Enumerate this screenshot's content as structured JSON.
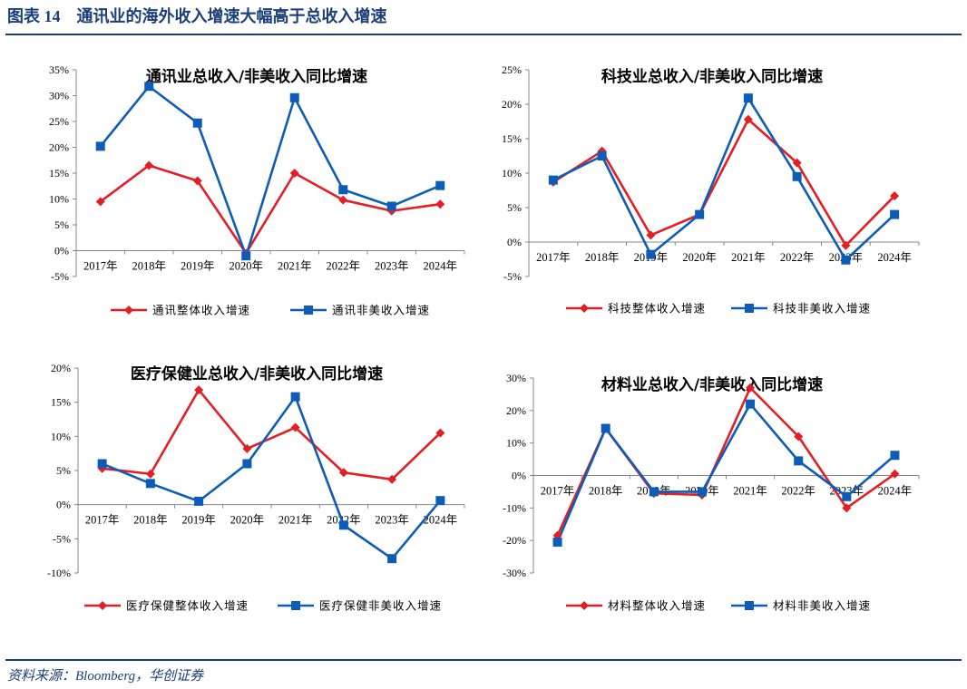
{
  "header": {
    "figure_label": "图表 14",
    "title": "通讯业的海外收入增速大幅高于总收入增速"
  },
  "footer": {
    "source": "资料来源：Bloomberg，华创证券"
  },
  "colors": {
    "brand": "#1a3f7a",
    "total_series": "#e31e24",
    "nonus_series": "#0d5db8"
  },
  "chart_data": [
    {
      "type": "line",
      "title": "通讯业总收入/非美收入同比增速",
      "categories": [
        "2017年",
        "2018年",
        "2019年",
        "2020年",
        "2021年",
        "2022年",
        "2023年",
        "2024年"
      ],
      "ylim": [
        -5,
        35
      ],
      "yticks": [
        -5,
        0,
        5,
        10,
        15,
        20,
        25,
        30,
        35
      ],
      "grid": false,
      "legend": "bottom",
      "series": [
        {
          "name": "通讯整体收入增速",
          "marker": "diamond",
          "values": [
            9.5,
            16.5,
            13.5,
            -0.5,
            15.0,
            9.8,
            7.7,
            9.0
          ]
        },
        {
          "name": "通讯非美收入增速",
          "marker": "square",
          "values": [
            20.2,
            31.8,
            24.7,
            -1.0,
            29.6,
            11.8,
            8.6,
            12.6
          ]
        }
      ]
    },
    {
      "type": "line",
      "title": "科技业总收入/非美收入同比增速",
      "categories": [
        "2017年",
        "2018年",
        "2019年",
        "2020年",
        "2021年",
        "2022年",
        "2023年",
        "2024年"
      ],
      "ylim": [
        -5,
        25
      ],
      "yticks": [
        -5,
        0,
        5,
        10,
        15,
        20,
        25
      ],
      "grid": false,
      "legend": "bottom",
      "series": [
        {
          "name": "科技整体收入增速",
          "marker": "diamond",
          "values": [
            8.7,
            13.2,
            1.0,
            4.0,
            17.8,
            11.5,
            -0.5,
            6.7
          ]
        },
        {
          "name": "科技非美收入增速",
          "marker": "square",
          "values": [
            9.0,
            12.5,
            -1.8,
            4.0,
            20.9,
            9.5,
            -2.6,
            4.0
          ]
        }
      ]
    },
    {
      "type": "line",
      "title": "医疗保健业总收入/非美收入同比增速",
      "categories": [
        "2017年",
        "2018年",
        "2019年",
        "2020年",
        "2021年",
        "2022年",
        "2023年",
        "2024年"
      ],
      "ylim": [
        -10,
        20
      ],
      "yticks": [
        -10,
        -5,
        0,
        5,
        10,
        15,
        20
      ],
      "grid": false,
      "legend": "bottom",
      "series": [
        {
          "name": "医疗保健整体收入增速",
          "marker": "diamond",
          "values": [
            5.3,
            4.5,
            16.8,
            8.2,
            11.3,
            4.7,
            3.7,
            10.5
          ]
        },
        {
          "name": "医疗保健非美收入增速",
          "marker": "square",
          "values": [
            6.0,
            3.1,
            0.5,
            6.0,
            15.8,
            -3.0,
            -7.9,
            0.6
          ]
        }
      ]
    },
    {
      "type": "line",
      "title": "材料业总收入/非美收入同比增速",
      "categories": [
        "2017年",
        "2018年",
        "2019年",
        "2020年",
        "2021年",
        "2022年",
        "2023年",
        "2024年"
      ],
      "ylim": [
        -30,
        30
      ],
      "yticks": [
        -30,
        -20,
        -10,
        0,
        10,
        20,
        30
      ],
      "grid": false,
      "legend": "bottom",
      "series": [
        {
          "name": "材料整体收入增速",
          "marker": "diamond",
          "values": [
            -18.5,
            14.5,
            -5.5,
            -6.0,
            27.0,
            12.0,
            -10.0,
            0.5
          ]
        },
        {
          "name": "材料非美收入增速",
          "marker": "square",
          "values": [
            -20.5,
            14.5,
            -5.0,
            -5.0,
            22.0,
            4.5,
            -6.5,
            6.2
          ]
        }
      ]
    }
  ]
}
